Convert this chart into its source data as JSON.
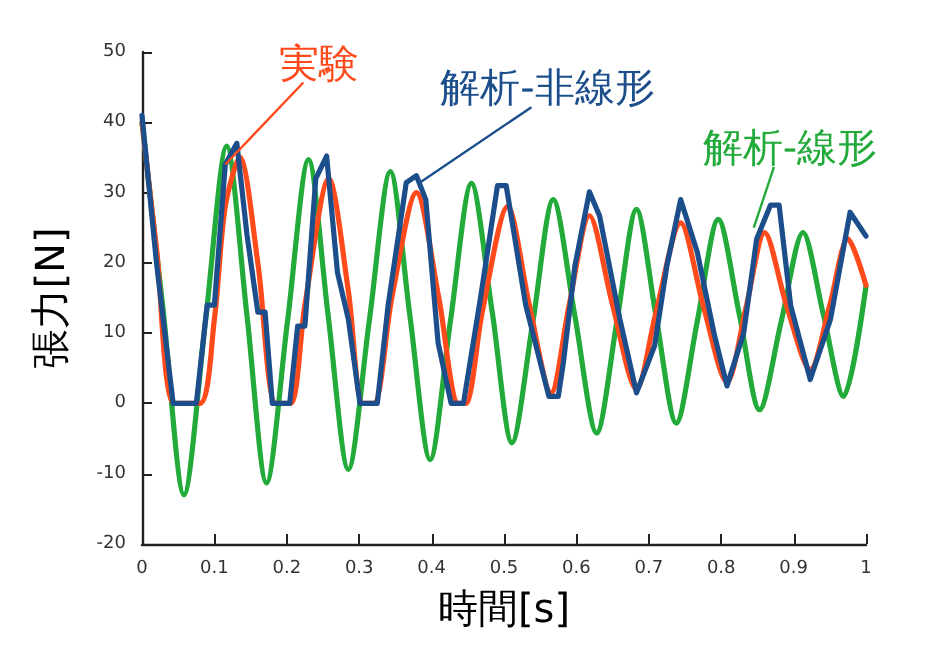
{
  "chart_data": {
    "type": "line",
    "xlabel": "時間[s]",
    "ylabel": "張力[N]",
    "xlim": [
      0,
      1
    ],
    "xticks": [
      0,
      0.1,
      0.2,
      0.3,
      0.4,
      0.5,
      0.6,
      0.7,
      0.8,
      0.9,
      1
    ],
    "ylim": [
      -20,
      50
    ],
    "yticks": [
      -20,
      -10,
      0,
      10,
      20,
      30,
      40,
      50
    ],
    "grid": false,
    "legend": false,
    "marker": "none",
    "line_style": "solid",
    "series": [
      {
        "name": "実験",
        "color": "#ff4a1c",
        "x": [
          0,
          0.02,
          0.045,
          0.08,
          0.1,
          0.115,
          0.135,
          0.16,
          0.185,
          0.205,
          0.225,
          0.258,
          0.285,
          0.305,
          0.32,
          0.345,
          0.379,
          0.41,
          0.437,
          0.447,
          0.47,
          0.505,
          0.535,
          0.565,
          0.59,
          0.618,
          0.65,
          0.683,
          0.71,
          0.744,
          0.775,
          0.808,
          0.835,
          0.86,
          0.89,
          0.923,
          0.95,
          0.975,
          1
        ],
        "values": [
          40,
          22,
          0,
          0,
          12,
          28,
          35,
          20,
          0,
          0,
          14,
          32,
          16,
          0,
          0,
          15,
          30,
          15,
          0,
          0,
          13,
          28,
          14,
          1.5,
          14,
          26.7,
          14,
          2,
          13,
          25.7,
          14,
          3,
          14,
          24.3,
          14,
          4.8,
          14,
          23.4,
          16.8
        ]
      },
      {
        "name": "解析-非線形",
        "color": "#1c4e8c",
        "x": [
          0,
          0.02,
          0.043,
          0.075,
          0.09,
          0.1,
          0.115,
          0.131,
          0.145,
          0.16,
          0.17,
          0.18,
          0.204,
          0.215,
          0.225,
          0.24,
          0.255,
          0.27,
          0.285,
          0.301,
          0.325,
          0.34,
          0.365,
          0.379,
          0.392,
          0.409,
          0.427,
          0.444,
          0.468,
          0.491,
          0.503,
          0.53,
          0.562,
          0.575,
          0.582,
          0.598,
          0.618,
          0.632,
          0.66,
          0.683,
          0.708,
          0.725,
          0.744,
          0.767,
          0.79,
          0.808,
          0.831,
          0.849,
          0.868,
          0.88,
          0.896,
          0.923,
          0.951,
          0.978,
          1
        ],
        "values": [
          41,
          20,
          0,
          0,
          14,
          14,
          34,
          37,
          24,
          13,
          13,
          0,
          0,
          11,
          11,
          32,
          35.2,
          18.6,
          12,
          0,
          0,
          14,
          31.4,
          32.4,
          29,
          8.6,
          0,
          0,
          15.3,
          31,
          31,
          14,
          1,
          1,
          5.8,
          19.6,
          30.1,
          26.7,
          12,
          1.5,
          8.2,
          19.6,
          29,
          21.5,
          10,
          2.5,
          10,
          23.4,
          28.2,
          28.2,
          13.9,
          3.4,
          12,
          27.2,
          23.8
        ]
      },
      {
        "name": "解析-線形",
        "color": "#22aa3a",
        "x": [
          0,
          0.029,
          0.058,
          0.088,
          0.117,
          0.145,
          0.172,
          0.201,
          0.23,
          0.257,
          0.285,
          0.314,
          0.343,
          0.37,
          0.398,
          0.426,
          0.455,
          0.484,
          0.511,
          0.54,
          0.568,
          0.598,
          0.628,
          0.656,
          0.683,
          0.71,
          0.738,
          0.767,
          0.796,
          0.825,
          0.853,
          0.883,
          0.913,
          0.941,
          0.969,
          1
        ],
        "values": [
          40,
          13.5,
          -13,
          12,
          36.6,
          12.5,
          -11.3,
          11.7,
          34.7,
          12.6,
          -9.4,
          11.8,
          33,
          12.5,
          -8,
          11.7,
          31.3,
          12.8,
          -5.6,
          11.7,
          29,
          12.4,
          -4.2,
          11.7,
          27.6,
          12.4,
          -2.8,
          11.7,
          26.2,
          12.7,
          -0.9,
          11.7,
          24.3,
          12.7,
          1,
          16.7
        ]
      }
    ]
  }
}
